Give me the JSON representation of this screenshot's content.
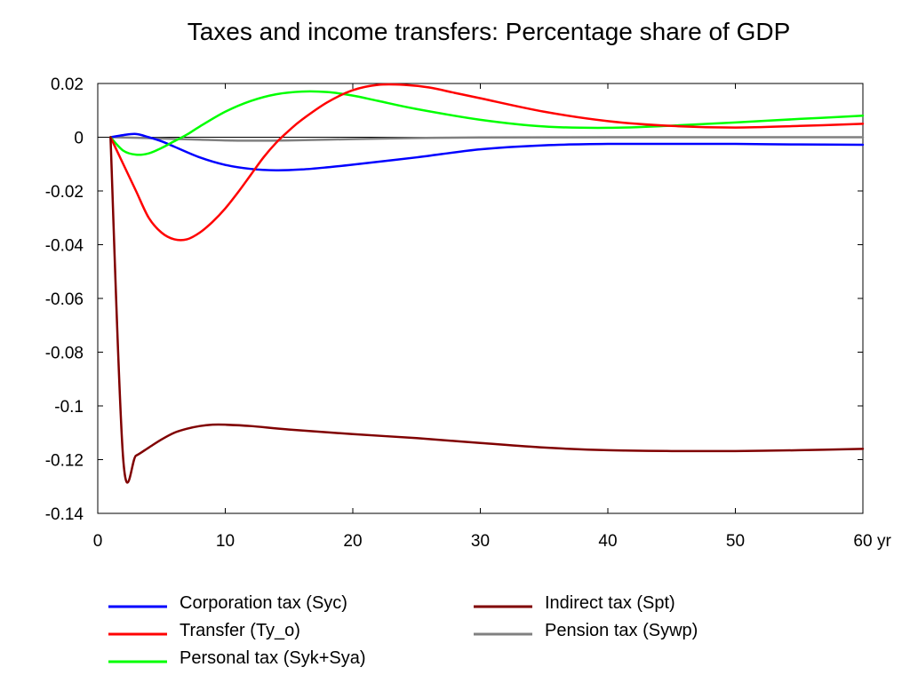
{
  "chart_data": {
    "type": "line",
    "title": "Taxes and income transfers: Percentage share of GDP",
    "xlabel": "",
    "ylabel": "",
    "x_unit_label": "yr",
    "xlim": [
      0,
      60
    ],
    "ylim": [
      -0.14,
      0.02
    ],
    "x_ticks": [
      {
        "value": 0,
        "label": "0"
      },
      {
        "value": 10,
        "label": "10"
      },
      {
        "value": 20,
        "label": "20"
      },
      {
        "value": 30,
        "label": "30"
      },
      {
        "value": 40,
        "label": "40"
      },
      {
        "value": 50,
        "label": "50"
      },
      {
        "value": 60,
        "label": "60"
      }
    ],
    "y_ticks": [
      {
        "value": 0.02,
        "label": "0.02"
      },
      {
        "value": 0,
        "label": "0"
      },
      {
        "value": -0.02,
        "label": "-0.02"
      },
      {
        "value": -0.04,
        "label": "-0.04"
      },
      {
        "value": -0.06,
        "label": "-0.06"
      },
      {
        "value": -0.08,
        "label": "-0.08"
      },
      {
        "value": -0.1,
        "label": "-0.1"
      },
      {
        "value": -0.12,
        "label": "-0.12"
      },
      {
        "value": -0.14,
        "label": "-0.14"
      }
    ],
    "grid": false,
    "zero_line": true,
    "legend_position": "bottom",
    "series": [
      {
        "name": "Corporation tax (Syc)",
        "color": "#0000ff",
        "x": [
          1,
          2,
          3,
          4,
          5,
          6,
          8,
          10,
          12,
          14,
          16,
          18,
          20,
          25,
          30,
          35,
          40,
          45,
          50,
          55,
          60
        ],
        "y": [
          0,
          0.0008,
          0.0012,
          0.0,
          -0.0015,
          -0.0035,
          -0.0075,
          -0.0103,
          -0.0118,
          -0.0123,
          -0.012,
          -0.0112,
          -0.0102,
          -0.0075,
          -0.0045,
          -0.003,
          -0.0025,
          -0.0025,
          -0.0025,
          -0.0027,
          -0.0028
        ]
      },
      {
        "name": "Transfer (Ty_o)",
        "color": "#ff0000",
        "x": [
          1,
          2,
          3,
          4,
          5,
          6,
          7,
          8,
          9,
          10,
          11,
          12,
          13,
          14,
          15,
          16,
          18,
          20,
          22,
          24,
          26,
          28,
          30,
          35,
          40,
          45,
          50,
          55,
          60
        ],
        "y": [
          0,
          -0.01,
          -0.02,
          -0.03,
          -0.0355,
          -0.038,
          -0.038,
          -0.0355,
          -0.0315,
          -0.0265,
          -0.0205,
          -0.014,
          -0.0075,
          -0.002,
          0.0025,
          0.0065,
          0.013,
          0.0175,
          0.0195,
          0.0195,
          0.0185,
          0.0165,
          0.0145,
          0.0095,
          0.006,
          0.0042,
          0.0036,
          0.0042,
          0.005
        ]
      },
      {
        "name": "Personal tax (Syk+Sya)",
        "color": "#00ff00",
        "x": [
          1,
          2,
          3,
          4,
          5,
          6,
          7,
          8,
          10,
          12,
          14,
          16,
          18,
          20,
          22,
          25,
          30,
          35,
          40,
          45,
          50,
          55,
          60
        ],
        "y": [
          0,
          -0.005,
          -0.0065,
          -0.006,
          -0.004,
          -0.0015,
          0.001,
          0.004,
          0.0095,
          0.0135,
          0.016,
          0.017,
          0.0168,
          0.0155,
          0.0135,
          0.0105,
          0.0065,
          0.004,
          0.0035,
          0.0043,
          0.0055,
          0.0068,
          0.008
        ]
      },
      {
        "name": "Indirect tax (Spt)",
        "color": "#800000",
        "x": [
          1,
          2,
          3,
          4,
          5,
          6,
          7,
          8,
          9,
          10,
          12,
          15,
          20,
          25,
          30,
          35,
          40,
          45,
          50,
          55,
          60
        ],
        "y": [
          0,
          -0.12,
          -0.1185,
          -0.1155,
          -0.1125,
          -0.11,
          -0.1085,
          -0.1075,
          -0.107,
          -0.107,
          -0.1075,
          -0.1088,
          -0.1105,
          -0.112,
          -0.1138,
          -0.1155,
          -0.1165,
          -0.1168,
          -0.1168,
          -0.1165,
          -0.116
        ]
      },
      {
        "name": "Pension tax (Sywp)",
        "color": "#808080",
        "x": [
          1,
          3,
          5,
          8,
          10,
          12,
          15,
          20,
          25,
          30,
          40,
          50,
          60
        ],
        "y": [
          0,
          -0.0002,
          -0.0005,
          -0.0009,
          -0.0012,
          -0.0013,
          -0.0012,
          -0.0007,
          -0.0003,
          -0.0001,
          0,
          0,
          0
        ]
      }
    ]
  }
}
